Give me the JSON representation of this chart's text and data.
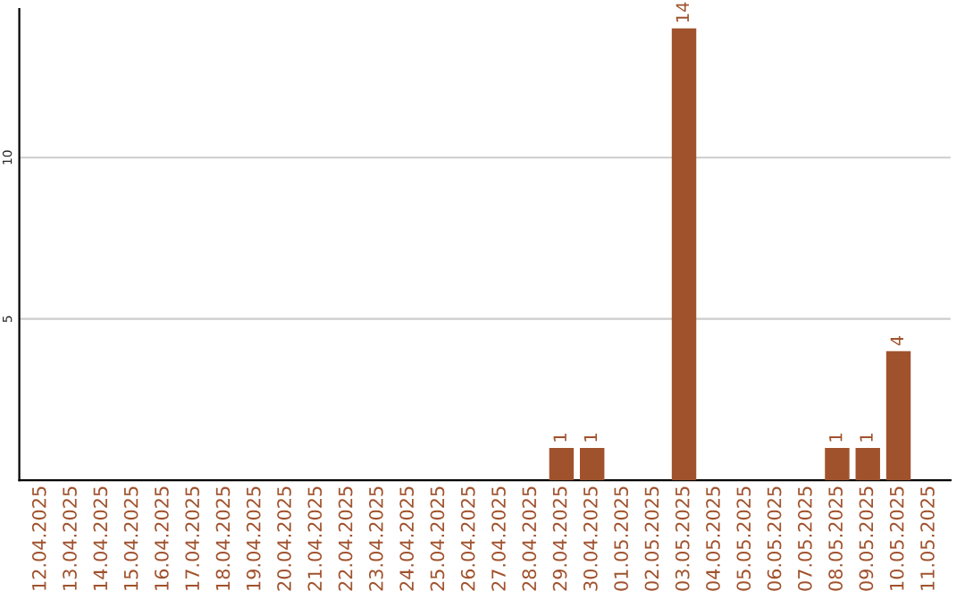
{
  "chart_data": {
    "type": "bar",
    "categories": [
      "12.04.2025",
      "13.04.2025",
      "14.04.2025",
      "15.04.2025",
      "16.04.2025",
      "17.04.2025",
      "18.04.2025",
      "19.04.2025",
      "20.04.2025",
      "21.04.2025",
      "22.04.2025",
      "23.04.2025",
      "24.04.2025",
      "25.04.2025",
      "26.04.2025",
      "27.04.2025",
      "28.04.2025",
      "29.04.2025",
      "30.04.2025",
      "01.05.2025",
      "02.05.2025",
      "03.05.2025",
      "04.05.2025",
      "05.05.2025",
      "06.05.2025",
      "07.05.2025",
      "08.05.2025",
      "09.05.2025",
      "10.05.2025",
      "11.05.2025"
    ],
    "values": [
      0,
      0,
      0,
      0,
      0,
      0,
      0,
      0,
      0,
      0,
      0,
      0,
      0,
      0,
      0,
      0,
      0,
      1,
      1,
      0,
      0,
      14,
      0,
      0,
      0,
      0,
      1,
      1,
      4,
      0
    ],
    "value_labels": [
      null,
      null,
      null,
      null,
      null,
      null,
      null,
      null,
      null,
      null,
      null,
      null,
      null,
      null,
      null,
      null,
      null,
      "1",
      "1",
      null,
      null,
      "14",
      null,
      null,
      null,
      null,
      "1",
      "1",
      "4",
      null
    ],
    "color": "#a0522d",
    "ylim": [
      0,
      14.6
    ],
    "yticks": [
      5,
      10
    ],
    "grid": "y"
  }
}
